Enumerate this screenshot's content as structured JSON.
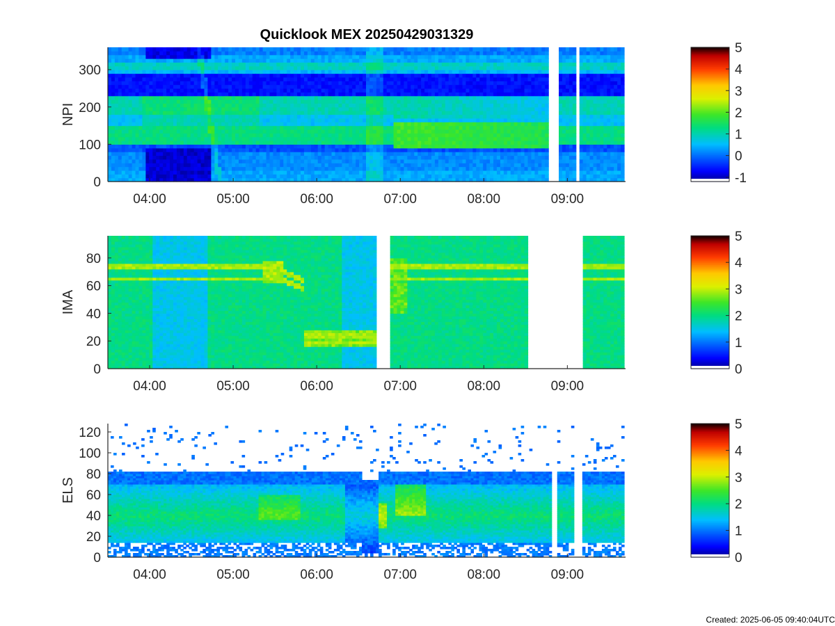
{
  "title": "Quicklook MEX 20250429031329",
  "created": "Created: 2025-06-05 09:40:04UTC",
  "colors": {
    "axis": "#262626",
    "gap": "#ffffff"
  },
  "colormap": "jet-like (blue-cyan-green-yellow-red-black)",
  "chart_data": [
    {
      "type": "heatmap",
      "ylabel": "NPI",
      "x_ticks": [
        "04:00",
        "05:00",
        "06:00",
        "07:00",
        "08:00",
        "09:00"
      ],
      "y_ticks": [
        "0",
        "100",
        "200",
        "300"
      ],
      "ylim": [
        0,
        360
      ],
      "xlim": [
        "03:30",
        "09:40"
      ],
      "data_gaps": [
        [
          "08:47",
          "08:53"
        ],
        [
          "09:05",
          "09:09"
        ]
      ],
      "colorbar": {
        "min": -1.2,
        "max": 5,
        "ticks": [
          "-1",
          "0",
          "1",
          "2",
          "3",
          "4",
          "5"
        ]
      }
    },
    {
      "type": "heatmap",
      "ylabel": "IMA",
      "x_ticks": [
        "04:00",
        "05:00",
        "06:00",
        "07:00",
        "08:00",
        "09:00"
      ],
      "y_ticks": [
        "0",
        "20",
        "40",
        "60",
        "80"
      ],
      "ylim": [
        0,
        96
      ],
      "xlim": [
        "03:30",
        "09:42"
      ],
      "data_gaps": [
        [
          "06:44",
          "06:53"
        ],
        [
          "08:32",
          "09:10"
        ]
      ],
      "colorbar": {
        "min": 0,
        "max": 5,
        "ticks": [
          "0",
          "1",
          "2",
          "3",
          "4",
          "5"
        ]
      }
    },
    {
      "type": "heatmap",
      "ylabel": "ELS",
      "x_ticks": [
        "04:00",
        "05:00",
        "06:00",
        "07:00",
        "08:00",
        "09:00"
      ],
      "y_ticks": [
        "0",
        "20",
        "40",
        "60",
        "80",
        "100",
        "120"
      ],
      "ylim": [
        0,
        128
      ],
      "xlim": [
        "03:30",
        "09:42"
      ],
      "data_gaps": [
        [
          "08:49",
          "08:53"
        ],
        [
          "09:05",
          "09:10"
        ]
      ],
      "colorbar": {
        "min": 0,
        "max": 5,
        "ticks": [
          "0",
          "1",
          "2",
          "3",
          "4",
          "5"
        ]
      }
    }
  ]
}
